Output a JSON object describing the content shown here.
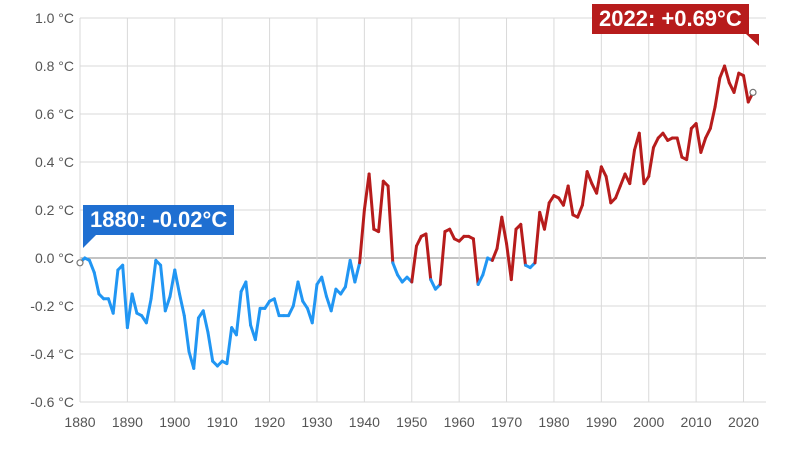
{
  "chart_data": {
    "type": "line",
    "title": "",
    "xlabel": "",
    "ylabel": "",
    "xlim": [
      1880,
      2022
    ],
    "ylim": [
      -0.6,
      1.0
    ],
    "x_ticks": [
      1880,
      1890,
      1900,
      1910,
      1920,
      1930,
      1940,
      1950,
      1960,
      1970,
      1980,
      1990,
      2000,
      2010,
      2020
    ],
    "y_ticks": [
      {
        "value": 1.0,
        "label": "1.0 °C"
      },
      {
        "value": 0.8,
        "label": "0.8 °C"
      },
      {
        "value": 0.6,
        "label": "0.6 °C"
      },
      {
        "value": 0.4,
        "label": "0.4 °C"
      },
      {
        "value": 0.2,
        "label": "0.2 °C"
      },
      {
        "value": 0.0,
        "label": "0.0 °C"
      },
      {
        "value": -0.2,
        "label": "-0.2 °C"
      },
      {
        "value": -0.4,
        "label": "-0.4 °C"
      },
      {
        "value": -0.6,
        "label": "-0.6 °C"
      }
    ],
    "grid": true,
    "colors": {
      "negative": "#2196f3",
      "positive": "#b71c1c",
      "grid": "#d9d9d9",
      "zero_line": "#888888"
    },
    "x": [
      1880,
      1881,
      1882,
      1883,
      1884,
      1885,
      1886,
      1887,
      1888,
      1889,
      1890,
      1891,
      1892,
      1893,
      1894,
      1895,
      1896,
      1897,
      1898,
      1899,
      1900,
      1901,
      1902,
      1903,
      1904,
      1905,
      1906,
      1907,
      1908,
      1909,
      1910,
      1911,
      1912,
      1913,
      1914,
      1915,
      1916,
      1917,
      1918,
      1919,
      1920,
      1921,
      1922,
      1923,
      1924,
      1925,
      1926,
      1927,
      1928,
      1929,
      1930,
      1931,
      1932,
      1933,
      1934,
      1935,
      1936,
      1937,
      1938,
      1939,
      1940,
      1941,
      1942,
      1943,
      1944,
      1945,
      1946,
      1947,
      1948,
      1949,
      1950,
      1951,
      1952,
      1953,
      1954,
      1955,
      1956,
      1957,
      1958,
      1959,
      1960,
      1961,
      1962,
      1963,
      1964,
      1965,
      1966,
      1967,
      1968,
      1969,
      1970,
      1971,
      1972,
      1973,
      1974,
      1975,
      1976,
      1977,
      1978,
      1979,
      1980,
      1981,
      1982,
      1983,
      1984,
      1985,
      1986,
      1987,
      1988,
      1989,
      1990,
      1991,
      1992,
      1993,
      1994,
      1995,
      1996,
      1997,
      1998,
      1999,
      2000,
      2001,
      2002,
      2003,
      2004,
      2005,
      2006,
      2007,
      2008,
      2009,
      2010,
      2011,
      2012,
      2013,
      2014,
      2015,
      2016,
      2017,
      2018,
      2019,
      2020,
      2021,
      2022
    ],
    "values": [
      -0.02,
      0.0,
      -0.01,
      -0.06,
      -0.15,
      -0.17,
      -0.17,
      -0.23,
      -0.05,
      -0.03,
      -0.29,
      -0.15,
      -0.23,
      -0.24,
      -0.27,
      -0.17,
      -0.01,
      -0.03,
      -0.22,
      -0.16,
      -0.05,
      -0.15,
      -0.24,
      -0.39,
      -0.46,
      -0.25,
      -0.22,
      -0.31,
      -0.43,
      -0.45,
      -0.43,
      -0.44,
      -0.29,
      -0.32,
      -0.14,
      -0.1,
      -0.28,
      -0.34,
      -0.21,
      -0.21,
      -0.18,
      -0.17,
      -0.24,
      -0.24,
      -0.24,
      -0.2,
      -0.1,
      -0.18,
      -0.21,
      -0.27,
      -0.11,
      -0.08,
      -0.16,
      -0.22,
      -0.13,
      -0.15,
      -0.12,
      -0.01,
      -0.1,
      -0.02,
      0.2,
      0.35,
      0.12,
      0.11,
      0.32,
      0.3,
      -0.02,
      -0.07,
      -0.1,
      -0.08,
      -0.1,
      0.05,
      0.09,
      0.1,
      -0.09,
      -0.13,
      -0.11,
      0.11,
      0.12,
      0.08,
      0.07,
      0.09,
      0.09,
      0.08,
      -0.11,
      -0.07,
      0.0,
      -0.01,
      0.04,
      0.17,
      0.06,
      -0.09,
      0.12,
      0.14,
      -0.03,
      -0.04,
      -0.02,
      0.19,
      0.12,
      0.23,
      0.26,
      0.25,
      0.22,
      0.3,
      0.18,
      0.17,
      0.22,
      0.36,
      0.31,
      0.27,
      0.38,
      0.34,
      0.23,
      0.25,
      0.3,
      0.35,
      0.31,
      0.45,
      0.52,
      0.31,
      0.34,
      0.46,
      0.5,
      0.52,
      0.49,
      0.5,
      0.5,
      0.42,
      0.41,
      0.54,
      0.56,
      0.44,
      0.5,
      0.54,
      0.63,
      0.75,
      0.8,
      0.73,
      0.69,
      0.77,
      0.76,
      0.65,
      0.69
    ],
    "annotations": [
      {
        "id": "start",
        "text": "1880: -0.02°C",
        "x": 1880,
        "y": -0.02
      },
      {
        "id": "end",
        "text": "2022: +0.69°C",
        "x": 2022,
        "y": 0.69
      }
    ]
  }
}
